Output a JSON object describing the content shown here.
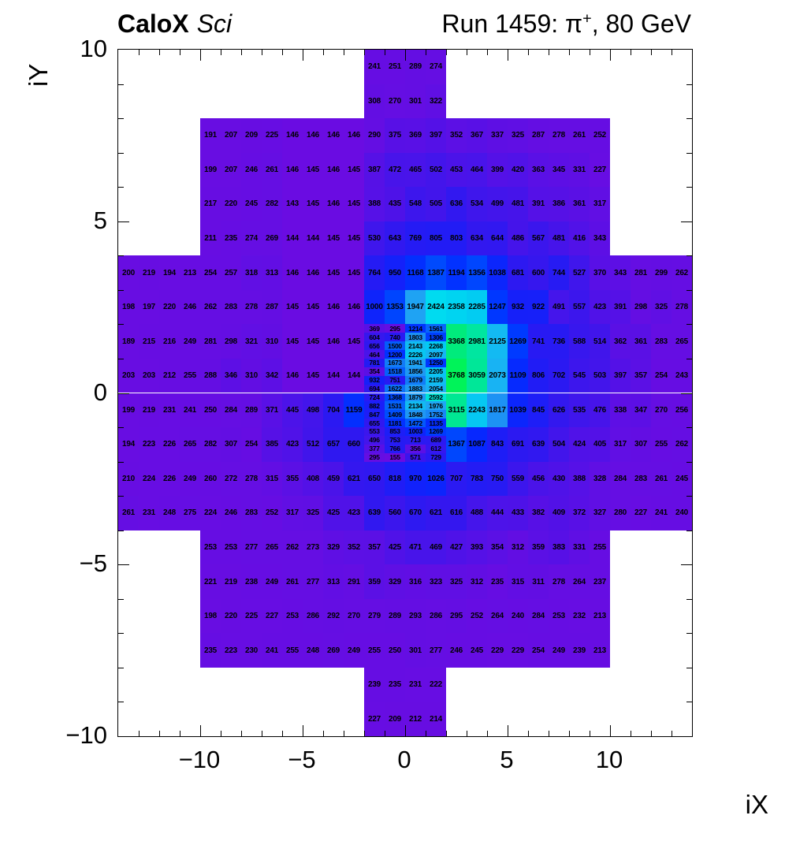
{
  "header": {
    "experiment": "CaloX",
    "detector_tag": "Sci",
    "run_prefix": "Run 1459: π",
    "run_sup": "+",
    "run_suffix": ", 80 GeV"
  },
  "axes": {
    "x_label": "iX",
    "y_label": "iY",
    "x_range": [
      -14,
      14
    ],
    "y_range": [
      -10,
      10
    ],
    "x_ticks": [
      {
        "v": -10,
        "label": "−10"
      },
      {
        "v": -5,
        "label": "−5"
      },
      {
        "v": 0,
        "label": "0"
      },
      {
        "v": 5,
        "label": "5"
      },
      {
        "v": 10,
        "label": "10"
      }
    ],
    "y_ticks": [
      {
        "v": -10,
        "label": "−10"
      },
      {
        "v": -5,
        "label": "−5"
      },
      {
        "v": 0,
        "label": "0"
      },
      {
        "v": 5,
        "label": "5"
      },
      {
        "v": 10,
        "label": "10"
      }
    ]
  },
  "palette": {
    "stops": [
      [
        143,
        "#6A0CE2"
      ],
      [
        300,
        "#640EE3"
      ],
      [
        400,
        "#5411E7"
      ],
      [
        500,
        "#4315EB"
      ],
      [
        650,
        "#3018F0"
      ],
      [
        800,
        "#221CF5"
      ],
      [
        950,
        "#1421FA"
      ],
      [
        1100,
        "#0629FE"
      ],
      [
        1250,
        "#0037FF"
      ],
      [
        1400,
        "#004CFD"
      ],
      [
        1550,
        "#0765FA"
      ],
      [
        1700,
        "#1480F6"
      ],
      [
        1850,
        "#1F97F3"
      ],
      [
        2000,
        "#1FAAF3"
      ],
      [
        2150,
        "#10BDF2"
      ],
      [
        2300,
        "#00CEF2"
      ],
      [
        2450,
        "#00DEF0"
      ],
      [
        2600,
        "#00E3D6"
      ],
      [
        2750,
        "#00E5BC"
      ],
      [
        2950,
        "#00E6A3"
      ],
      [
        3150,
        "#00E88F"
      ],
      [
        3400,
        "#00EC79"
      ],
      [
        3768,
        "#00F359"
      ]
    ]
  },
  "chart_data": {
    "type": "heatmap",
    "title": "CaloX Sci — Run 1459: π+, 80 GeV",
    "xlabel": "iX",
    "ylabel": "iY",
    "z_min": 143,
    "z_max": 3768,
    "coarse_rows": [
      {
        "iy": 9,
        "ix0": -2,
        "values": [
          241,
          251,
          289,
          274
        ]
      },
      {
        "iy": 8,
        "ix0": -2,
        "values": [
          308,
          270,
          301,
          322
        ]
      },
      {
        "iy": 7,
        "ix0": -10,
        "values": [
          191,
          207,
          209,
          225,
          146,
          146,
          146,
          146,
          290,
          375,
          369,
          397,
          352,
          367,
          337,
          325,
          287,
          278,
          261,
          252
        ]
      },
      {
        "iy": 6,
        "ix0": -10,
        "values": [
          199,
          207,
          246,
          261,
          146,
          145,
          146,
          145,
          387,
          472,
          465,
          502,
          453,
          464,
          399,
          420,
          363,
          345,
          331,
          227
        ]
      },
      {
        "iy": 5,
        "ix0": -10,
        "values": [
          217,
          220,
          245,
          282,
          143,
          145,
          146,
          145,
          388,
          435,
          548,
          505,
          636,
          534,
          499,
          481,
          391,
          386,
          361,
          317
        ]
      },
      {
        "iy": 4,
        "ix0": -10,
        "values": [
          211,
          235,
          274,
          269,
          144,
          144,
          145,
          145,
          530,
          643,
          769,
          805,
          803,
          634,
          644,
          486,
          567,
          481,
          416,
          343
        ]
      },
      {
        "iy": 3,
        "ix0": -14,
        "values": [
          200,
          219,
          194,
          213,
          254,
          257,
          318,
          313,
          146,
          146,
          145,
          145,
          764,
          950,
          1168,
          1387,
          1194,
          1356,
          1038,
          681,
          600,
          744,
          527,
          370,
          343,
          281,
          299,
          262
        ]
      },
      {
        "iy": 2,
        "ix0": -14,
        "values": [
          198,
          197,
          220,
          246,
          262,
          283,
          278,
          287,
          145,
          145,
          146,
          146,
          1000,
          1353,
          1947,
          2424,
          2358,
          2285,
          1247,
          932,
          922,
          491,
          557,
          423,
          391,
          298,
          325,
          278
        ]
      },
      {
        "iy": 1,
        "ix0": -14,
        "values": [
          189,
          215,
          216,
          249,
          281,
          298,
          321,
          310,
          145,
          145,
          146,
          145
        ]
      },
      {
        "iy": 1,
        "ix0": 2,
        "values": [
          3368,
          2981,
          2125,
          1269,
          741,
          736,
          588,
          514,
          362,
          361,
          283,
          265
        ]
      },
      {
        "iy": 0,
        "ix0": -14,
        "values": [
          203,
          203,
          212,
          255,
          288,
          346,
          310,
          342,
          146,
          145,
          144,
          144
        ]
      },
      {
        "iy": 0,
        "ix0": 2,
        "values": [
          3768,
          3059,
          2073,
          1109,
          806,
          702,
          545,
          503,
          397,
          357,
          254,
          243
        ]
      },
      {
        "iy": -1,
        "ix0": -14,
        "values": [
          199,
          219,
          231,
          241,
          250,
          284,
          289,
          371,
          445,
          498,
          704,
          1159
        ]
      },
      {
        "iy": -1,
        "ix0": 2,
        "values": [
          3115,
          2243,
          1817,
          1039,
          845,
          626,
          535,
          476,
          338,
          347,
          270,
          256
        ]
      },
      {
        "iy": -2,
        "ix0": -14,
        "values": [
          194,
          223,
          226,
          265,
          282,
          307,
          254,
          385,
          423,
          512,
          657,
          660
        ]
      },
      {
        "iy": -2,
        "ix0": 2,
        "values": [
          1367,
          1087,
          843,
          691,
          639,
          504,
          424,
          405,
          317,
          307,
          255,
          262
        ]
      },
      {
        "iy": -3,
        "ix0": -14,
        "values": [
          210,
          224,
          226,
          249,
          260,
          272,
          278,
          315,
          355,
          408,
          459,
          621,
          650,
          818,
          970,
          1026,
          707,
          783,
          750,
          559,
          456,
          430,
          388,
          328,
          284,
          283,
          261,
          245
        ]
      },
      {
        "iy": -4,
        "ix0": -14,
        "values": [
          261,
          231,
          248,
          275,
          224,
          246,
          283,
          252,
          317,
          325,
          425,
          423,
          639,
          560,
          670,
          621,
          616,
          488,
          444,
          433,
          382,
          409,
          372,
          327,
          280,
          227,
          241,
          240
        ]
      },
      {
        "iy": -5,
        "ix0": -10,
        "values": [
          253,
          253,
          277,
          265,
          262,
          273,
          329,
          352,
          357,
          425,
          471,
          469,
          427,
          393,
          354,
          312,
          359,
          383,
          331,
          255
        ]
      },
      {
        "iy": -6,
        "ix0": -10,
        "values": [
          221,
          219,
          238,
          249,
          261,
          277,
          313,
          291,
          359,
          329,
          316,
          323,
          325,
          312,
          235,
          315,
          311,
          278,
          264,
          237
        ]
      },
      {
        "iy": -7,
        "ix0": -10,
        "values": [
          198,
          220,
          225,
          227,
          253,
          286,
          292,
          270,
          279,
          289,
          293,
          286,
          295,
          252,
          264,
          240,
          284,
          253,
          232,
          213
        ]
      },
      {
        "iy": -8,
        "ix0": -10,
        "values": [
          235,
          223,
          230,
          241,
          255,
          248,
          269,
          249,
          255,
          250,
          301,
          277,
          246,
          245,
          229,
          229,
          254,
          249,
          239,
          213
        ]
      },
      {
        "iy": -9,
        "ix0": -2,
        "values": [
          239,
          235,
          231,
          222
        ]
      },
      {
        "iy": -10,
        "ix0": -2,
        "values": [
          227,
          209,
          212,
          214
        ]
      }
    ],
    "fine_block": {
      "ix0": -2,
      "iy_top": 2,
      "cols": 4,
      "col_width_units": 1,
      "row_height_units": 0.25,
      "rows": [
        [
          369,
          295,
          1214,
          1561
        ],
        [
          604,
          740,
          1803,
          1306
        ],
        [
          656,
          1500,
          2143,
          2268
        ],
        [
          464,
          1200,
          2226,
          2097
        ],
        [
          781,
          1673,
          1941,
          1250
        ],
        [
          354,
          1518,
          1856,
          2205
        ],
        [
          932,
          751,
          1679,
          2159
        ],
        [
          694,
          1622,
          1883,
          2054
        ],
        [
          724,
          1368,
          1879,
          2592
        ],
        [
          882,
          1531,
          2134,
          1976
        ],
        [
          847,
          1409,
          1848,
          1752
        ],
        [
          655,
          1181,
          1472,
          1135
        ],
        [
          553,
          853,
          1003,
          1269
        ],
        [
          496,
          753,
          713,
          689
        ],
        [
          377,
          766,
          356,
          612
        ],
        [
          295,
          155,
          571,
          729
        ]
      ]
    }
  }
}
